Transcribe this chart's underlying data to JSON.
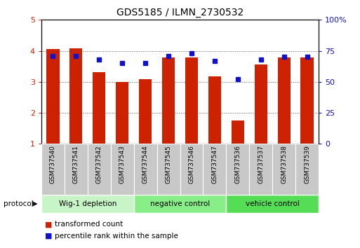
{
  "title": "GDS5185 / ILMN_2730532",
  "samples": [
    "GSM737540",
    "GSM737541",
    "GSM737542",
    "GSM737543",
    "GSM737544",
    "GSM737545",
    "GSM737546",
    "GSM737547",
    "GSM737536",
    "GSM737537",
    "GSM737538",
    "GSM737539"
  ],
  "red_values": [
    4.05,
    4.08,
    3.32,
    3.0,
    3.08,
    3.78,
    3.78,
    3.18,
    1.75,
    3.55,
    3.78,
    3.78
  ],
  "blue_percentiles": [
    71,
    71,
    68,
    65,
    65,
    71,
    73,
    67,
    52,
    68,
    70,
    70
  ],
  "ylim_left": [
    1,
    5
  ],
  "ylim_right": [
    0,
    100
  ],
  "yticks_left": [
    1,
    2,
    3,
    4,
    5
  ],
  "yticks_right": [
    0,
    25,
    50,
    75,
    100
  ],
  "ytick_labels_right": [
    "0",
    "25",
    "50",
    "75",
    "100%"
  ],
  "bar_color": "#cc2200",
  "marker_color": "#1111cc",
  "bar_width": 0.55,
  "marker_size": 5,
  "legend_red_label": "transformed count",
  "legend_blue_label": "percentile rank within the sample",
  "protocol_label": "protocol",
  "group_info": [
    {
      "label": "Wig-1 depletion",
      "start": 0,
      "end": 3,
      "color": "#c8f5c8"
    },
    {
      "label": "negative control",
      "start": 4,
      "end": 7,
      "color": "#88ee88"
    },
    {
      "label": "vehicle control",
      "start": 8,
      "end": 11,
      "color": "#55dd55"
    }
  ],
  "sample_box_color": "#c8c8c8",
  "title_fontsize": 10,
  "tick_fontsize": 8,
  "label_fontsize": 8,
  "sample_fontsize": 6.5
}
